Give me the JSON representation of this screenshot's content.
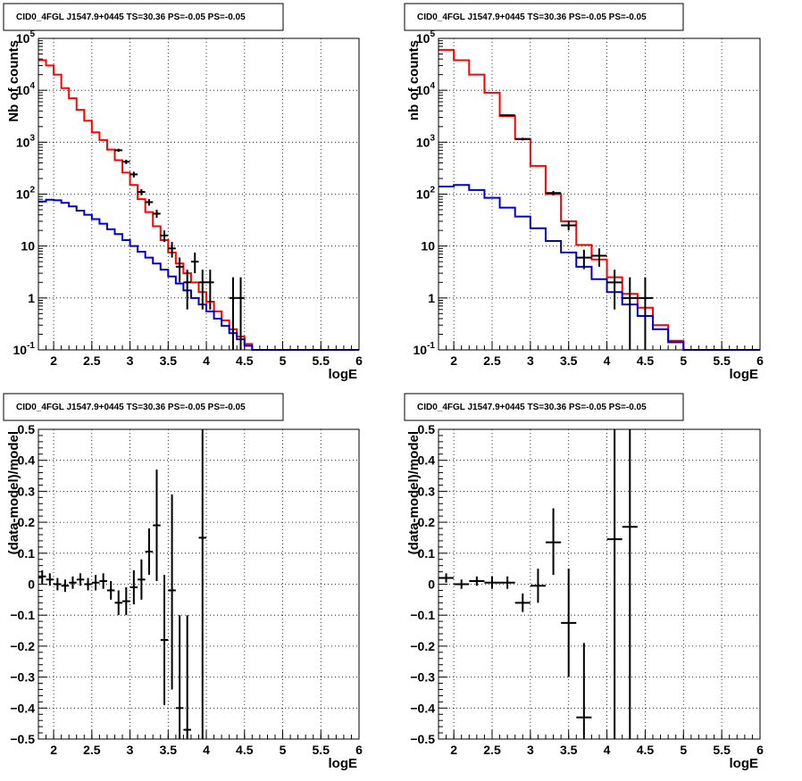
{
  "chart_data": [
    {
      "type": "line",
      "title": "CID0_4FGL J1547.9+0445 TS=30.36 PS=-0.05 PS=-0.05",
      "xlabel": "logE",
      "ylabel": "Nb of counts",
      "log_y": true,
      "grid": true,
      "xlim": [
        1.8,
        6
      ],
      "ylim": [
        0.1,
        100000
      ],
      "x_ticks": [
        "2",
        "2.5",
        "3",
        "3.5",
        "4",
        "4.5",
        "5",
        "5.5",
        "6"
      ],
      "y_ticks": [
        "10^-1",
        "1",
        "10",
        "10^2",
        "10^3",
        "10^4",
        "10^5"
      ],
      "bin_edges": [
        1.8,
        1.9,
        2.0,
        2.1,
        2.2,
        2.3,
        2.4,
        2.5,
        2.6,
        2.7,
        2.8,
        2.9,
        3.0,
        3.1,
        3.2,
        3.3,
        3.4,
        3.5,
        3.6,
        3.7,
        3.8,
        3.9,
        4.0,
        4.1,
        4.2,
        4.3,
        4.4,
        4.5,
        4.6,
        4.7,
        4.8,
        4.9,
        5.0,
        5.1,
        5.2,
        5.3,
        5.4,
        5.5,
        5.6,
        5.7,
        5.8,
        5.9,
        6.0
      ],
      "series": [
        {
          "color": "#ff0000",
          "values": [
            38000,
            30000,
            20000,
            11000,
            7000,
            4200,
            2600,
            1550,
            1100,
            720,
            450,
            260,
            150,
            80,
            45,
            24,
            13,
            7.5,
            4.6,
            3.0,
            2.0,
            1.3,
            0.85,
            0.55,
            0.37,
            0.25,
            0.18,
            0.13,
            0.1,
            0.1,
            0.1,
            0.1,
            0.1,
            0.1,
            0.1,
            0.1,
            0.1,
            0.1,
            0.1,
            0.1,
            0.1,
            0.1
          ]
        },
        {
          "color": "#0000cc",
          "values": [
            72,
            78,
            76,
            68,
            58,
            48,
            40,
            33,
            27,
            21,
            17,
            13,
            10,
            7.8,
            6.0,
            4.6,
            3.5,
            2.6,
            1.9,
            1.4,
            1.0,
            0.75,
            0.55,
            0.4,
            0.29,
            0.21,
            0.16,
            0.12,
            0.1,
            0.1,
            0.1,
            0.1,
            0.1,
            0.1,
            0.1,
            0.1,
            0.1,
            0.1,
            0.1,
            0.1,
            0.1,
            0.1
          ]
        }
      ],
      "points": [
        {
          "x": 2.85,
          "xerr": 0.05,
          "y": 700,
          "ylo": 650,
          "yhi": 750
        },
        {
          "x": 2.95,
          "xerr": 0.05,
          "y": 420,
          "ylo": 380,
          "yhi": 460
        },
        {
          "x": 3.05,
          "xerr": 0.05,
          "y": 240,
          "ylo": 210,
          "yhi": 270
        },
        {
          "x": 3.15,
          "xerr": 0.05,
          "y": 110,
          "ylo": 95,
          "yhi": 125
        },
        {
          "x": 3.25,
          "xerr": 0.05,
          "y": 70,
          "ylo": 60,
          "yhi": 80
        },
        {
          "x": 3.35,
          "xerr": 0.05,
          "y": 42,
          "ylo": 35,
          "yhi": 50
        },
        {
          "x": 3.45,
          "xerr": 0.05,
          "y": 16,
          "ylo": 12,
          "yhi": 20
        },
        {
          "x": 3.55,
          "xerr": 0.05,
          "y": 9,
          "ylo": 6,
          "yhi": 12
        },
        {
          "x": 3.65,
          "xerr": 0.05,
          "y": 4,
          "ylo": 2,
          "yhi": 6
        },
        {
          "x": 3.75,
          "xerr": 0.05,
          "y": 2,
          "ylo": 0.6,
          "yhi": 3.5
        },
        {
          "x": 3.85,
          "xerr": 0.05,
          "y": 5,
          "ylo": 3,
          "yhi": 7.5
        },
        {
          "x": 3.95,
          "xerr": 0.05,
          "y": 2,
          "ylo": 0.6,
          "yhi": 3.5
        },
        {
          "x": 4.05,
          "xerr": 0.05,
          "y": 2,
          "ylo": 0.6,
          "yhi": 3.5
        },
        {
          "x": 4.35,
          "xerr": 0.05,
          "y": 1,
          "ylo": 0.1,
          "yhi": 2.5
        },
        {
          "x": 4.45,
          "xerr": 0.05,
          "y": 1,
          "ylo": 0.1,
          "yhi": 2.5
        }
      ]
    },
    {
      "type": "line",
      "title": "CID0_4FGL J1547.9+0445 TS=30.36 PS=-0.05 PS=-0.05",
      "xlabel": "logE",
      "ylabel": "nb of counts",
      "log_y": true,
      "grid": true,
      "xlim": [
        1.8,
        6
      ],
      "ylim": [
        0.1,
        100000
      ],
      "x_ticks": [
        "2",
        "2.5",
        "3",
        "3.5",
        "4",
        "4.5",
        "5",
        "5.5",
        "6"
      ],
      "y_ticks": [
        "10^-1",
        "1",
        "10",
        "10^2",
        "10^3",
        "10^4",
        "10^5"
      ],
      "bin_edges": [
        1.8,
        2.0,
        2.2,
        2.4,
        2.6,
        2.8,
        3.0,
        3.2,
        3.4,
        3.6,
        3.8,
        4.0,
        4.2,
        4.4,
        4.6,
        4.8,
        5.0,
        5.2,
        5.4,
        5.6,
        5.8,
        6.0
      ],
      "series": [
        {
          "color": "#ff0000",
          "values": [
            60000,
            38000,
            20000,
            9000,
            3200,
            1150,
            350,
            100,
            30,
            10.5,
            5.5,
            2.5,
            1.2,
            0.65,
            0.3,
            0.15,
            0.1,
            0.1,
            0.1,
            0.1,
            0.1
          ]
        },
        {
          "color": "#0000cc",
          "values": [
            140,
            150,
            120,
            85,
            55,
            37,
            22,
            12.5,
            7.5,
            4.0,
            2.3,
            1.3,
            0.75,
            0.45,
            0.25,
            0.14,
            0.1,
            0.1,
            0.1,
            0.1,
            0.1
          ]
        }
      ],
      "points": [
        {
          "x": 2.7,
          "xerr": 0.1,
          "y": 3300,
          "ylo": 3150,
          "yhi": 3450
        },
        {
          "x": 2.9,
          "xerr": 0.1,
          "y": 1150,
          "ylo": 1080,
          "yhi": 1220
        },
        {
          "x": 3.3,
          "xerr": 0.1,
          "y": 105,
          "ylo": 95,
          "yhi": 115
        },
        {
          "x": 3.5,
          "xerr": 0.1,
          "y": 25,
          "ylo": 20,
          "yhi": 30
        },
        {
          "x": 3.7,
          "xerr": 0.1,
          "y": 6,
          "ylo": 3.6,
          "yhi": 8.5
        },
        {
          "x": 3.9,
          "xerr": 0.1,
          "y": 6.5,
          "ylo": 4,
          "yhi": 9
        },
        {
          "x": 4.1,
          "xerr": 0.1,
          "y": 2,
          "ylo": 0.6,
          "yhi": 3.5
        },
        {
          "x": 4.3,
          "xerr": 0.1,
          "y": 1,
          "ylo": 0.1,
          "yhi": 2.5
        },
        {
          "x": 4.5,
          "xerr": 0.1,
          "y": 1,
          "ylo": 0.1,
          "yhi": 2.5
        }
      ]
    },
    {
      "type": "scatter",
      "title": "CID0_4FGL J1547.9+0445 TS=30.36 PS=-0.05 PS=-0.05",
      "xlabel": "logE",
      "ylabel": "(data-model)/model",
      "grid": true,
      "xlim": [
        1.8,
        6
      ],
      "ylim": [
        -0.5,
        0.5
      ],
      "x_ticks": [
        "2",
        "2.5",
        "3",
        "3.5",
        "4",
        "4.5",
        "5",
        "5.5",
        "6"
      ],
      "y_ticks": [
        "−0.5",
        "−0.4",
        "−0.3",
        "−0.2",
        "−0.1",
        "0",
        "0.1",
        "0.2",
        "0.3",
        "0.4",
        "0.5"
      ],
      "points": [
        {
          "x": 1.85,
          "xerr": 0.05,
          "y": 0.025,
          "ylo": 0.0,
          "yhi": 0.045
        },
        {
          "x": 1.95,
          "xerr": 0.05,
          "y": 0.015,
          "ylo": -0.005,
          "yhi": 0.035
        },
        {
          "x": 2.05,
          "xerr": 0.05,
          "y": 0.0,
          "ylo": -0.02,
          "yhi": 0.02
        },
        {
          "x": 2.15,
          "xerr": 0.05,
          "y": -0.005,
          "ylo": -0.025,
          "yhi": 0.015
        },
        {
          "x": 2.25,
          "xerr": 0.05,
          "y": 0.005,
          "ylo": -0.015,
          "yhi": 0.025
        },
        {
          "x": 2.35,
          "xerr": 0.05,
          "y": 0.015,
          "ylo": -0.005,
          "yhi": 0.035
        },
        {
          "x": 2.45,
          "xerr": 0.05,
          "y": 0.0,
          "ylo": -0.02,
          "yhi": 0.02
        },
        {
          "x": 2.55,
          "xerr": 0.05,
          "y": 0.005,
          "ylo": -0.02,
          "yhi": 0.03
        },
        {
          "x": 2.65,
          "xerr": 0.05,
          "y": 0.01,
          "ylo": -0.015,
          "yhi": 0.035
        },
        {
          "x": 2.75,
          "xerr": 0.05,
          "y": -0.02,
          "ylo": -0.05,
          "yhi": 0.01
        },
        {
          "x": 2.85,
          "xerr": 0.05,
          "y": -0.06,
          "ylo": -0.1,
          "yhi": -0.02
        },
        {
          "x": 2.95,
          "xerr": 0.05,
          "y": -0.055,
          "ylo": -0.1,
          "yhi": -0.01
        },
        {
          "x": 3.05,
          "xerr": 0.05,
          "y": -0.01,
          "ylo": -0.065,
          "yhi": 0.045
        },
        {
          "x": 3.15,
          "xerr": 0.05,
          "y": 0.015,
          "ylo": -0.05,
          "yhi": 0.08
        },
        {
          "x": 3.25,
          "xerr": 0.05,
          "y": 0.105,
          "ylo": 0.03,
          "yhi": 0.18
        },
        {
          "x": 3.35,
          "xerr": 0.05,
          "y": 0.19,
          "ylo": 0.01,
          "yhi": 0.37
        },
        {
          "x": 3.45,
          "xerr": 0.05,
          "y": -0.18,
          "ylo": -0.39,
          "yhi": 0.03
        },
        {
          "x": 3.55,
          "xerr": 0.05,
          "y": -0.02,
          "ylo": -0.34,
          "yhi": 0.29
        },
        {
          "x": 3.65,
          "xerr": 0.05,
          "y": -0.4,
          "ylo": -0.5,
          "yhi": -0.1
        },
        {
          "x": 3.75,
          "xerr": 0.05,
          "y": -0.47,
          "ylo": -0.5,
          "yhi": -0.1
        },
        {
          "x": 3.95,
          "xerr": 0.05,
          "y": 0.15,
          "ylo": -0.5,
          "yhi": 0.5
        }
      ]
    },
    {
      "type": "scatter",
      "title": "CID0_4FGL J1547.9+0445 TS=30.36 PS=-0.05 PS=-0.05",
      "xlabel": "logE",
      "ylabel": "(data-model)/model",
      "grid": true,
      "xlim": [
        1.8,
        6
      ],
      "ylim": [
        -0.5,
        0.5
      ],
      "x_ticks": [
        "2",
        "2.5",
        "3",
        "3.5",
        "4",
        "4.5",
        "5",
        "5.5",
        "6"
      ],
      "y_ticks": [
        "−0.5",
        "−0.4",
        "−0.3",
        "−0.2",
        "−0.1",
        "0",
        "0.1",
        "0.2",
        "0.3",
        "0.4",
        "0.5"
      ],
      "points": [
        {
          "x": 1.9,
          "xerr": 0.1,
          "y": 0.02,
          "ylo": 0.005,
          "yhi": 0.035
        },
        {
          "x": 2.1,
          "xerr": 0.1,
          "y": 0.0,
          "ylo": -0.015,
          "yhi": 0.015
        },
        {
          "x": 2.3,
          "xerr": 0.1,
          "y": 0.01,
          "ylo": -0.005,
          "yhi": 0.025
        },
        {
          "x": 2.5,
          "xerr": 0.1,
          "y": 0.005,
          "ylo": -0.015,
          "yhi": 0.025
        },
        {
          "x": 2.7,
          "xerr": 0.1,
          "y": 0.005,
          "ylo": -0.015,
          "yhi": 0.025
        },
        {
          "x": 2.9,
          "xerr": 0.1,
          "y": -0.06,
          "ylo": -0.09,
          "yhi": -0.03
        },
        {
          "x": 3.1,
          "xerr": 0.1,
          "y": -0.005,
          "ylo": -0.06,
          "yhi": 0.05
        },
        {
          "x": 3.3,
          "xerr": 0.1,
          "y": 0.135,
          "ylo": 0.03,
          "yhi": 0.245
        },
        {
          "x": 3.5,
          "xerr": 0.1,
          "y": -0.125,
          "ylo": -0.3,
          "yhi": 0.05
        },
        {
          "x": 3.7,
          "xerr": 0.1,
          "y": -0.43,
          "ylo": -0.5,
          "yhi": -0.19
        },
        {
          "x": 4.1,
          "xerr": 0.1,
          "y": 0.145,
          "ylo": -0.5,
          "yhi": 0.5
        },
        {
          "x": 4.3,
          "xerr": 0.1,
          "y": 0.185,
          "ylo": -0.5,
          "yhi": 0.5
        }
      ]
    }
  ]
}
